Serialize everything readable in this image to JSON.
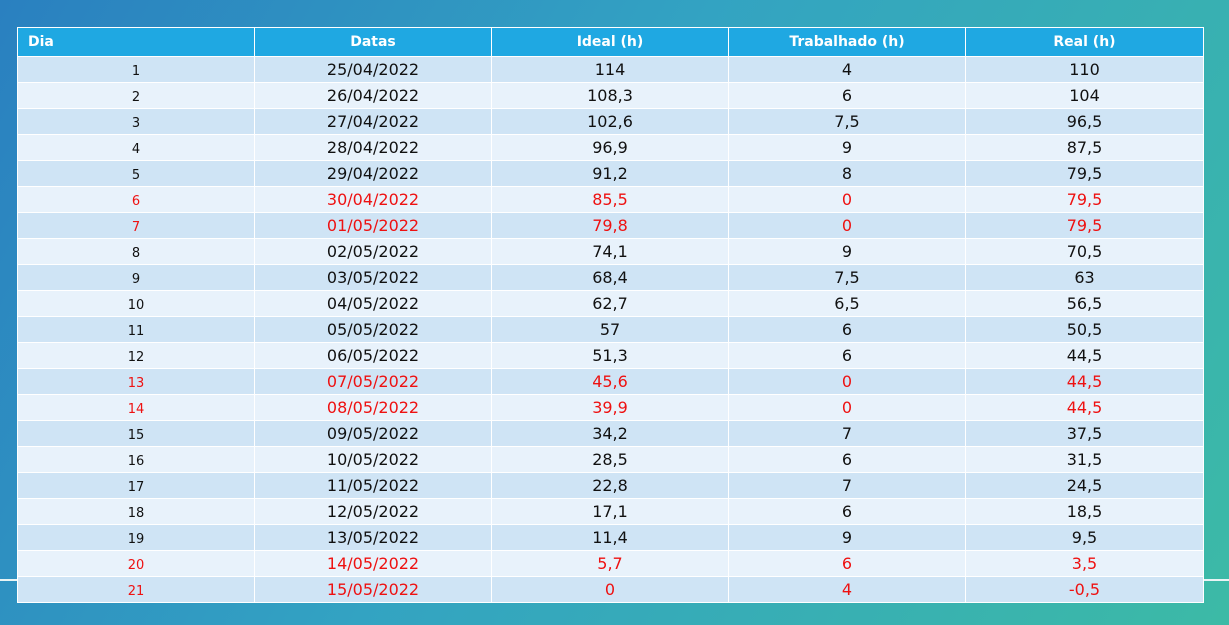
{
  "table": {
    "headers": {
      "dia": "Dia",
      "datas": "Datas",
      "ideal": "Ideal (h)",
      "trabalhado": "Trabalhado (h)",
      "real": "Real (h)"
    },
    "rows": [
      {
        "dia": "1",
        "data": "25/04/2022",
        "ideal": "114",
        "trabalhado": "4",
        "real": "110",
        "highlight": false
      },
      {
        "dia": "2",
        "data": "26/04/2022",
        "ideal": "108,3",
        "trabalhado": "6",
        "real": "104",
        "highlight": false
      },
      {
        "dia": "3",
        "data": "27/04/2022",
        "ideal": "102,6",
        "trabalhado": "7,5",
        "real": "96,5",
        "highlight": false
      },
      {
        "dia": "4",
        "data": "28/04/2022",
        "ideal": "96,9",
        "trabalhado": "9",
        "real": "87,5",
        "highlight": false
      },
      {
        "dia": "5",
        "data": "29/04/2022",
        "ideal": "91,2",
        "trabalhado": "8",
        "real": "79,5",
        "highlight": false
      },
      {
        "dia": "6",
        "data": "30/04/2022",
        "ideal": "85,5",
        "trabalhado": "0",
        "real": "79,5",
        "highlight": true
      },
      {
        "dia": "7",
        "data": "01/05/2022",
        "ideal": "79,8",
        "trabalhado": "0",
        "real": "79,5",
        "highlight": true
      },
      {
        "dia": "8",
        "data": "02/05/2022",
        "ideal": "74,1",
        "trabalhado": "9",
        "real": "70,5",
        "highlight": false
      },
      {
        "dia": "9",
        "data": "03/05/2022",
        "ideal": "68,4",
        "trabalhado": "7,5",
        "real": "63",
        "highlight": false
      },
      {
        "dia": "10",
        "data": "04/05/2022",
        "ideal": "62,7",
        "trabalhado": "6,5",
        "real": "56,5",
        "highlight": false
      },
      {
        "dia": "11",
        "data": "05/05/2022",
        "ideal": "57",
        "trabalhado": "6",
        "real": "50,5",
        "highlight": false
      },
      {
        "dia": "12",
        "data": "06/05/2022",
        "ideal": "51,3",
        "trabalhado": "6",
        "real": "44,5",
        "highlight": false
      },
      {
        "dia": "13",
        "data": "07/05/2022",
        "ideal": "45,6",
        "trabalhado": "0",
        "real": "44,5",
        "highlight": true
      },
      {
        "dia": "14",
        "data": "08/05/2022",
        "ideal": "39,9",
        "trabalhado": "0",
        "real": "44,5",
        "highlight": true
      },
      {
        "dia": "15",
        "data": "09/05/2022",
        "ideal": "34,2",
        "trabalhado": "7",
        "real": "37,5",
        "highlight": false
      },
      {
        "dia": "16",
        "data": "10/05/2022",
        "ideal": "28,5",
        "trabalhado": "6",
        "real": "31,5",
        "highlight": false
      },
      {
        "dia": "17",
        "data": "11/05/2022",
        "ideal": "22,8",
        "trabalhado": "7",
        "real": "24,5",
        "highlight": false
      },
      {
        "dia": "18",
        "data": "12/05/2022",
        "ideal": "17,1",
        "trabalhado": "6",
        "real": "18,5",
        "highlight": false
      },
      {
        "dia": "19",
        "data": "13/05/2022",
        "ideal": "11,4",
        "trabalhado": "9",
        "real": "9,5",
        "highlight": false
      },
      {
        "dia": "20",
        "data": "14/05/2022",
        "ideal": "5,7",
        "trabalhado": "6",
        "real": "3,5",
        "highlight": true
      },
      {
        "dia": "21",
        "data": "15/05/2022",
        "ideal": "0",
        "trabalhado": "4",
        "real": "-0,5",
        "highlight": true
      }
    ]
  },
  "colors": {
    "header_bg": "#1fa8e2",
    "row_odd_bg": "#cfe4f5",
    "row_even_bg": "#e8f2fb",
    "highlight_text": "#ee1111",
    "normal_text": "#111111"
  }
}
